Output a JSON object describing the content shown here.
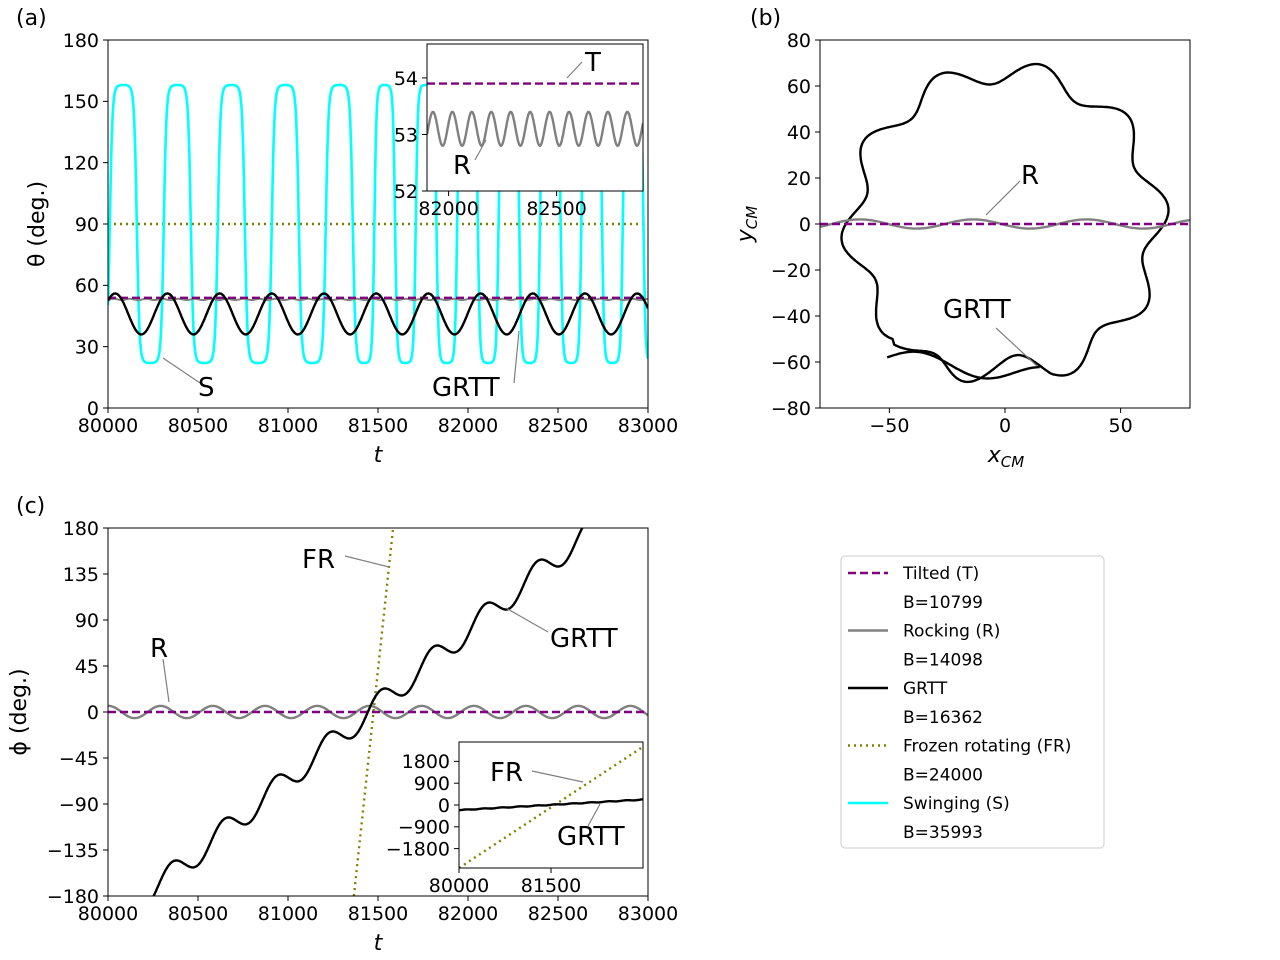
{
  "chart_data": [
    {
      "type": "line",
      "panel_label": "(a)",
      "xlabel": "t",
      "ylabel": "θ (deg.)",
      "xlim": [
        80000,
        83000
      ],
      "ylim": [
        0,
        180
      ],
      "xticks": [
        "80000",
        "80500",
        "81000",
        "81500",
        "82000",
        "82500",
        "83000"
      ],
      "yticks": [
        "0",
        "30",
        "60",
        "90",
        "120",
        "150",
        "180"
      ],
      "series": [
        {
          "name": "Tilted (T)",
          "color": "#800080",
          "style": "dashed",
          "values": [
            53.9
          ]
        },
        {
          "name": "Rocking (R)",
          "color": "#808080",
          "style": "solid",
          "center": 53.1,
          "amplitude": 0.3,
          "period": 90
        },
        {
          "name": "GRTT",
          "color": "#000000",
          "style": "solid",
          "center": 46,
          "amplitude": 10,
          "period": 290
        },
        {
          "name": "Frozen rotating (FR)",
          "color": "#808000",
          "style": "dotted",
          "values": [
            90
          ]
        },
        {
          "name": "Swinging (S)",
          "color": "#00ffff",
          "style": "solid",
          "min": 22,
          "max": 158,
          "period_early": 300,
          "period_late": 230
        }
      ],
      "annotations": [
        "S",
        "GRTT"
      ],
      "inset": {
        "xlim": [
          81900,
          82900
        ],
        "ylim": [
          52,
          54.6
        ],
        "xticks": [
          "82000",
          "82500"
        ],
        "yticks": [
          "52",
          "53",
          "54"
        ],
        "annotations": [
          "T",
          "R"
        ]
      }
    },
    {
      "type": "line",
      "panel_label": "(b)",
      "xlabel": "x_CM",
      "ylabel": "y_CM",
      "xlim": [
        -80,
        80
      ],
      "ylim": [
        -80,
        80
      ],
      "xticks": [
        "−50",
        "0",
        "50"
      ],
      "yticks": [
        "−80",
        "−60",
        "−40",
        "−20",
        "0",
        "20",
        "40",
        "60",
        "80"
      ],
      "series": [
        {
          "name": "GRTT",
          "color": "#000000",
          "shape": "wavy closed loop",
          "mean_radius": 66,
          "wave_amplitude": 5,
          "lobes": 10
        },
        {
          "name": "Rocking (R)",
          "color": "#808080",
          "shape": "small oscillation about y=0",
          "amplitude": 2
        },
        {
          "name": "Tilted (T)",
          "color": "#800080",
          "shape": "line y=0"
        }
      ],
      "annotations": [
        "R",
        "GRTT"
      ]
    },
    {
      "type": "line",
      "panel_label": "(c)",
      "xlabel": "t",
      "ylabel": "ϕ (deg.)",
      "xlim": [
        80000,
        83000
      ],
      "ylim": [
        -180,
        180
      ],
      "xticks": [
        "80000",
        "80500",
        "81000",
        "81500",
        "82000",
        "82500",
        "83000"
      ],
      "yticks": [
        "−180",
        "−135",
        "−90",
        "−45",
        "0",
        "45",
        "90",
        "135",
        "180"
      ],
      "series": [
        {
          "name": "Tilted (T)",
          "color": "#800080",
          "style": "dashed",
          "values": [
            0
          ]
        },
        {
          "name": "Rocking (R)",
          "color": "#808080",
          "style": "solid",
          "center": 0,
          "amplitude": 6,
          "period": 290
        },
        {
          "name": "GRTT",
          "color": "#000000",
          "style": "solid",
          "slope_deg_per_t": 0.145,
          "intercept_t": 81450,
          "amplitude": 12,
          "period": 290
        },
        {
          "name": "Frozen rotating (FR)",
          "color": "#808000",
          "style": "dotted",
          "slope_deg_per_t": 1.65,
          "intercept_t": 81475
        }
      ],
      "annotations": [
        "FR",
        "GRTT",
        "R"
      ],
      "inset": {
        "xlim": [
          80000,
          83000
        ],
        "ylim": [
          -2600,
          2600
        ],
        "xticks": [
          "80000",
          "81500"
        ],
        "yticks": [
          "−1800",
          "−900",
          "0",
          "900",
          "1800"
        ],
        "annotations": [
          "FR",
          "GRTT"
        ]
      }
    }
  ],
  "legend": {
    "items": [
      {
        "label": "Tilted (T)",
        "sub": "B=10799",
        "color": "#800080",
        "style": "dashed"
      },
      {
        "label": "Rocking (R)",
        "sub": "B=14098",
        "color": "#808080",
        "style": "solid"
      },
      {
        "label": "GRTT",
        "sub": "B=16362",
        "color": "#000000",
        "style": "solid"
      },
      {
        "label": "Frozen rotating (FR)",
        "sub": "B=24000",
        "color": "#808000",
        "style": "dotted"
      },
      {
        "label": "Swinging (S)",
        "sub": "B=35993",
        "color": "#00ffff",
        "style": "solid"
      }
    ]
  }
}
